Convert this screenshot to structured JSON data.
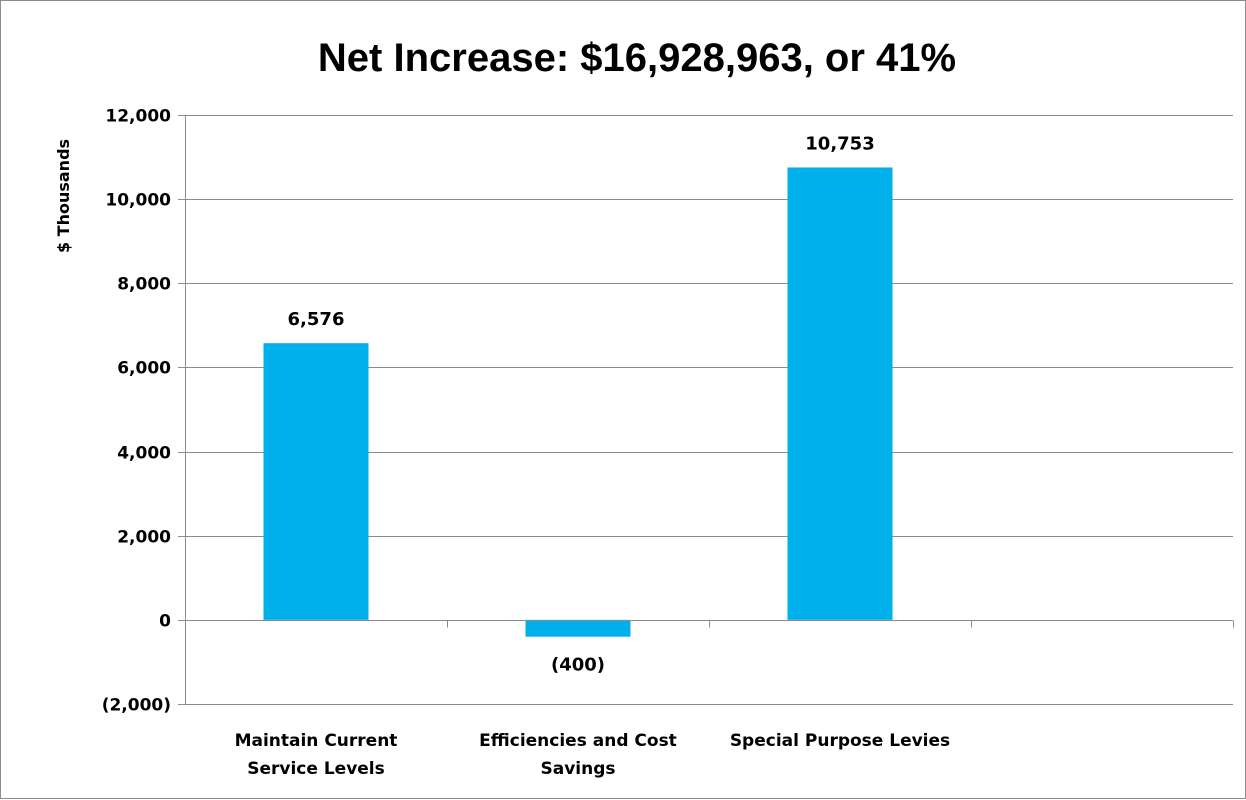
{
  "chart_data": {
    "type": "bar",
    "title": "Net Increase: $16,928,963, or 41%",
    "xlabel": "",
    "ylabel": "$ Thousands",
    "categories": [
      [
        "Maintain Current",
        "Service Levels"
      ],
      [
        "Efficiencies and Cost",
        "Savings"
      ],
      [
        "Special Purpose Levies"
      ],
      []
    ],
    "values": [
      6576,
      -400,
      10753,
      null
    ],
    "data_labels": [
      "6,576",
      "(400)",
      "10,753",
      ""
    ],
    "ylim": [
      -2000,
      12000
    ],
    "yticks": [
      -2000,
      0,
      2000,
      4000,
      6000,
      8000,
      10000,
      12000
    ],
    "ytick_labels": [
      "(2,000)",
      "0",
      "2,000",
      "4,000",
      "6,000",
      "8,000",
      "10,000",
      "12,000"
    ],
    "grid": true,
    "legend": "none",
    "colors": {
      "bar": "#00b0ea",
      "grid": "#8c8c8c",
      "axis": "#8c8c8c",
      "frame": "#8c8c8c"
    }
  }
}
